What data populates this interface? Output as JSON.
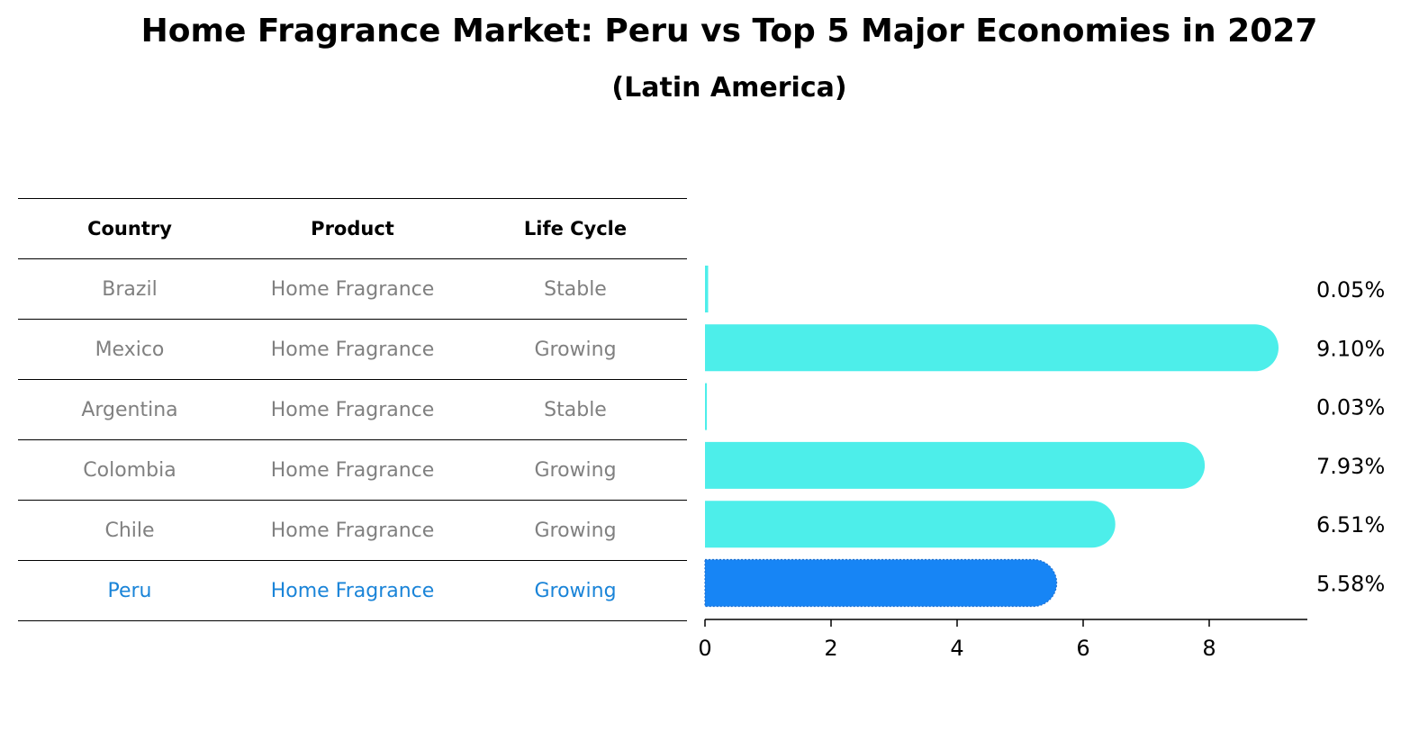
{
  "title": "Home Fragrance Market: Peru vs Top 5 Major Economies in 2027",
  "subtitle": "(Latin America)",
  "table": {
    "headers": [
      "Country",
      "Product",
      "Life Cycle"
    ],
    "rows": [
      {
        "country": "Brazil",
        "product": "Home Fragrance",
        "life_cycle": "Stable"
      },
      {
        "country": "Mexico",
        "product": "Home Fragrance",
        "life_cycle": "Growing"
      },
      {
        "country": "Argentina",
        "product": "Home Fragrance",
        "life_cycle": "Stable"
      },
      {
        "country": "Colombia",
        "product": "Home Fragrance",
        "life_cycle": "Growing"
      },
      {
        "country": "Chile",
        "product": "Home Fragrance",
        "life_cycle": "Growing"
      },
      {
        "country": "Peru",
        "product": "Home Fragrance",
        "life_cycle": "Growing"
      }
    ]
  },
  "colors": {
    "bar": "#4deeea",
    "highlight": "#1785f5",
    "highlight_text": "#1a84d8",
    "table_text": "#808080"
  },
  "chart_data": {
    "type": "bar",
    "orientation": "horizontal",
    "title": "Home Fragrance Market: Peru vs Top 5 Major Economies in 2027",
    "subtitle": "(Latin America)",
    "categories": [
      "Brazil",
      "Mexico",
      "Argentina",
      "Colombia",
      "Chile",
      "Peru"
    ],
    "values": [
      0.05,
      9.1,
      0.03,
      7.93,
      6.51,
      5.58
    ],
    "value_labels": [
      "0.05%",
      "9.10%",
      "0.03%",
      "7.93%",
      "6.51%",
      "5.58%"
    ],
    "highlight": "Peru",
    "xlim": [
      0,
      9.6
    ],
    "xticks": [
      0,
      2,
      4,
      6,
      8
    ],
    "xlabel": "",
    "ylabel": "",
    "grid": false
  }
}
